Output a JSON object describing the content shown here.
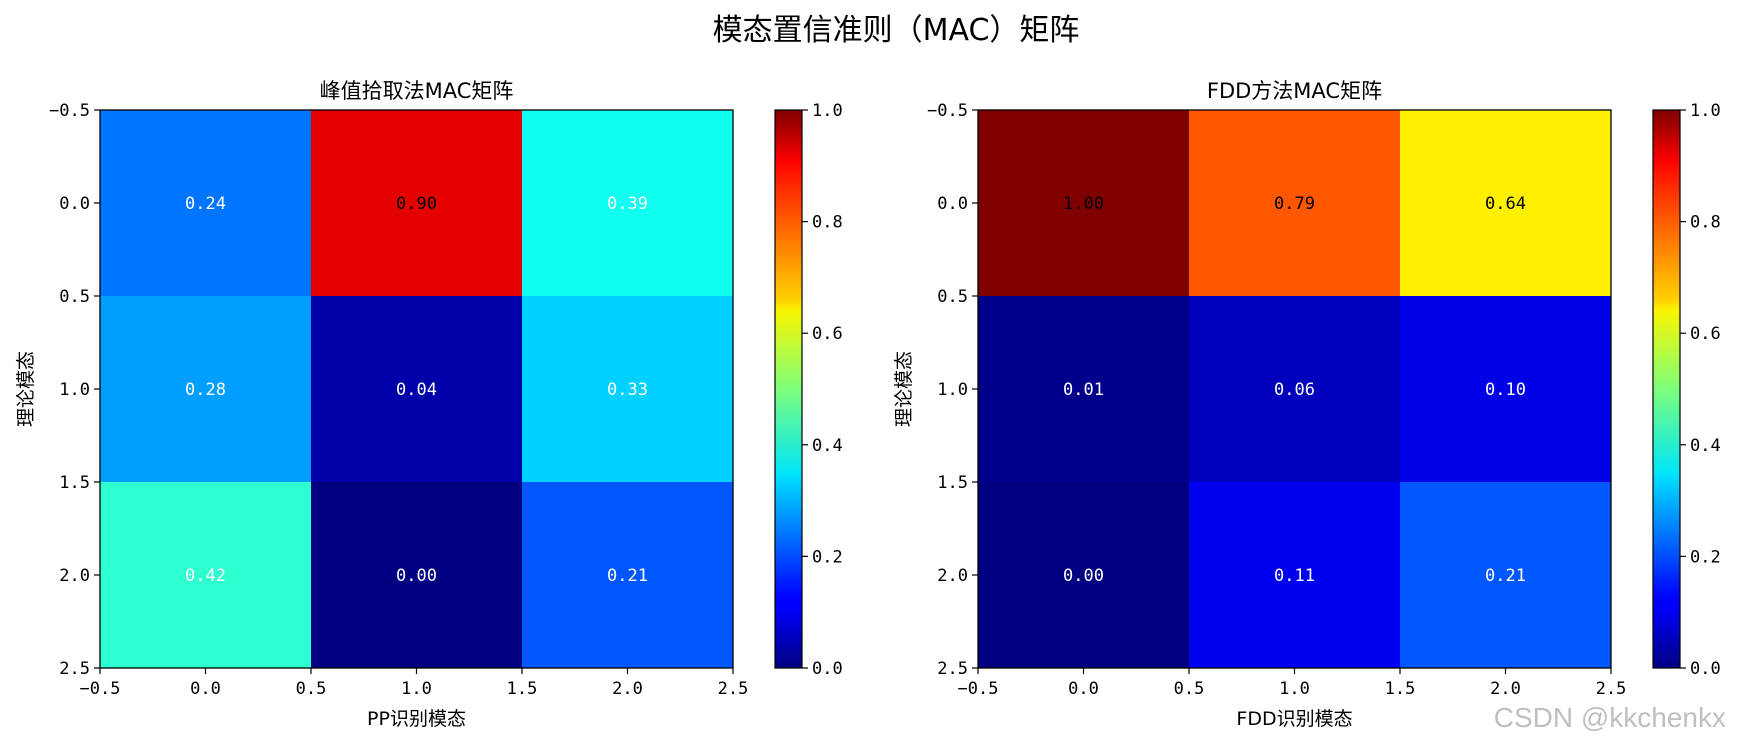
{
  "figure": {
    "suptitle": "模态置信准则（MAC）矩阵",
    "watermark": "CSDN @kkchenkx"
  },
  "chart_data": [
    {
      "type": "heatmap",
      "title": "峰值拾取法MAC矩阵",
      "xlabel": "PP识别模态",
      "ylabel": "理论模态",
      "colormap": "jet",
      "vmin": 0.0,
      "vmax": 1.0,
      "xlim": [
        -0.5,
        2.5
      ],
      "ylim": [
        2.5,
        -0.5
      ],
      "xticks": [
        "−0.5",
        "0.0",
        "0.5",
        "1.0",
        "1.5",
        "2.0",
        "2.5"
      ],
      "yticks": [
        "−0.5",
        "0.0",
        "0.5",
        "1.0",
        "1.5",
        "2.0",
        "2.5"
      ],
      "colorbar_ticks": [
        "0.0",
        "0.2",
        "0.4",
        "0.6",
        "0.8",
        "1.0"
      ],
      "values": [
        [
          0.24,
          0.9,
          0.39
        ],
        [
          0.28,
          0.04,
          0.33
        ],
        [
          0.42,
          0.0,
          0.21
        ]
      ],
      "labels": [
        [
          "0.24",
          "0.90",
          "0.39"
        ],
        [
          "0.28",
          "0.04",
          "0.33"
        ],
        [
          "0.42",
          "0.00",
          "0.21"
        ]
      ]
    },
    {
      "type": "heatmap",
      "title": "FDD方法MAC矩阵",
      "xlabel": "FDD识别模态",
      "ylabel": "理论模态",
      "colormap": "jet",
      "vmin": 0.0,
      "vmax": 1.0,
      "xlim": [
        -0.5,
        2.5
      ],
      "ylim": [
        2.5,
        -0.5
      ],
      "xticks": [
        "−0.5",
        "0.0",
        "0.5",
        "1.0",
        "1.5",
        "2.0",
        "2.5"
      ],
      "yticks": [
        "−0.5",
        "0.0",
        "0.5",
        "1.0",
        "1.5",
        "2.0",
        "2.5"
      ],
      "colorbar_ticks": [
        "0.0",
        "0.2",
        "0.4",
        "0.6",
        "0.8",
        "1.0"
      ],
      "values": [
        [
          1.0,
          0.79,
          0.64
        ],
        [
          0.01,
          0.06,
          0.1
        ],
        [
          0.0,
          0.11,
          0.21
        ]
      ],
      "labels": [
        [
          "1.00",
          "0.79",
          "0.64"
        ],
        [
          "0.01",
          "0.06",
          "0.10"
        ],
        [
          "0.00",
          "0.11",
          "0.21"
        ]
      ]
    }
  ]
}
